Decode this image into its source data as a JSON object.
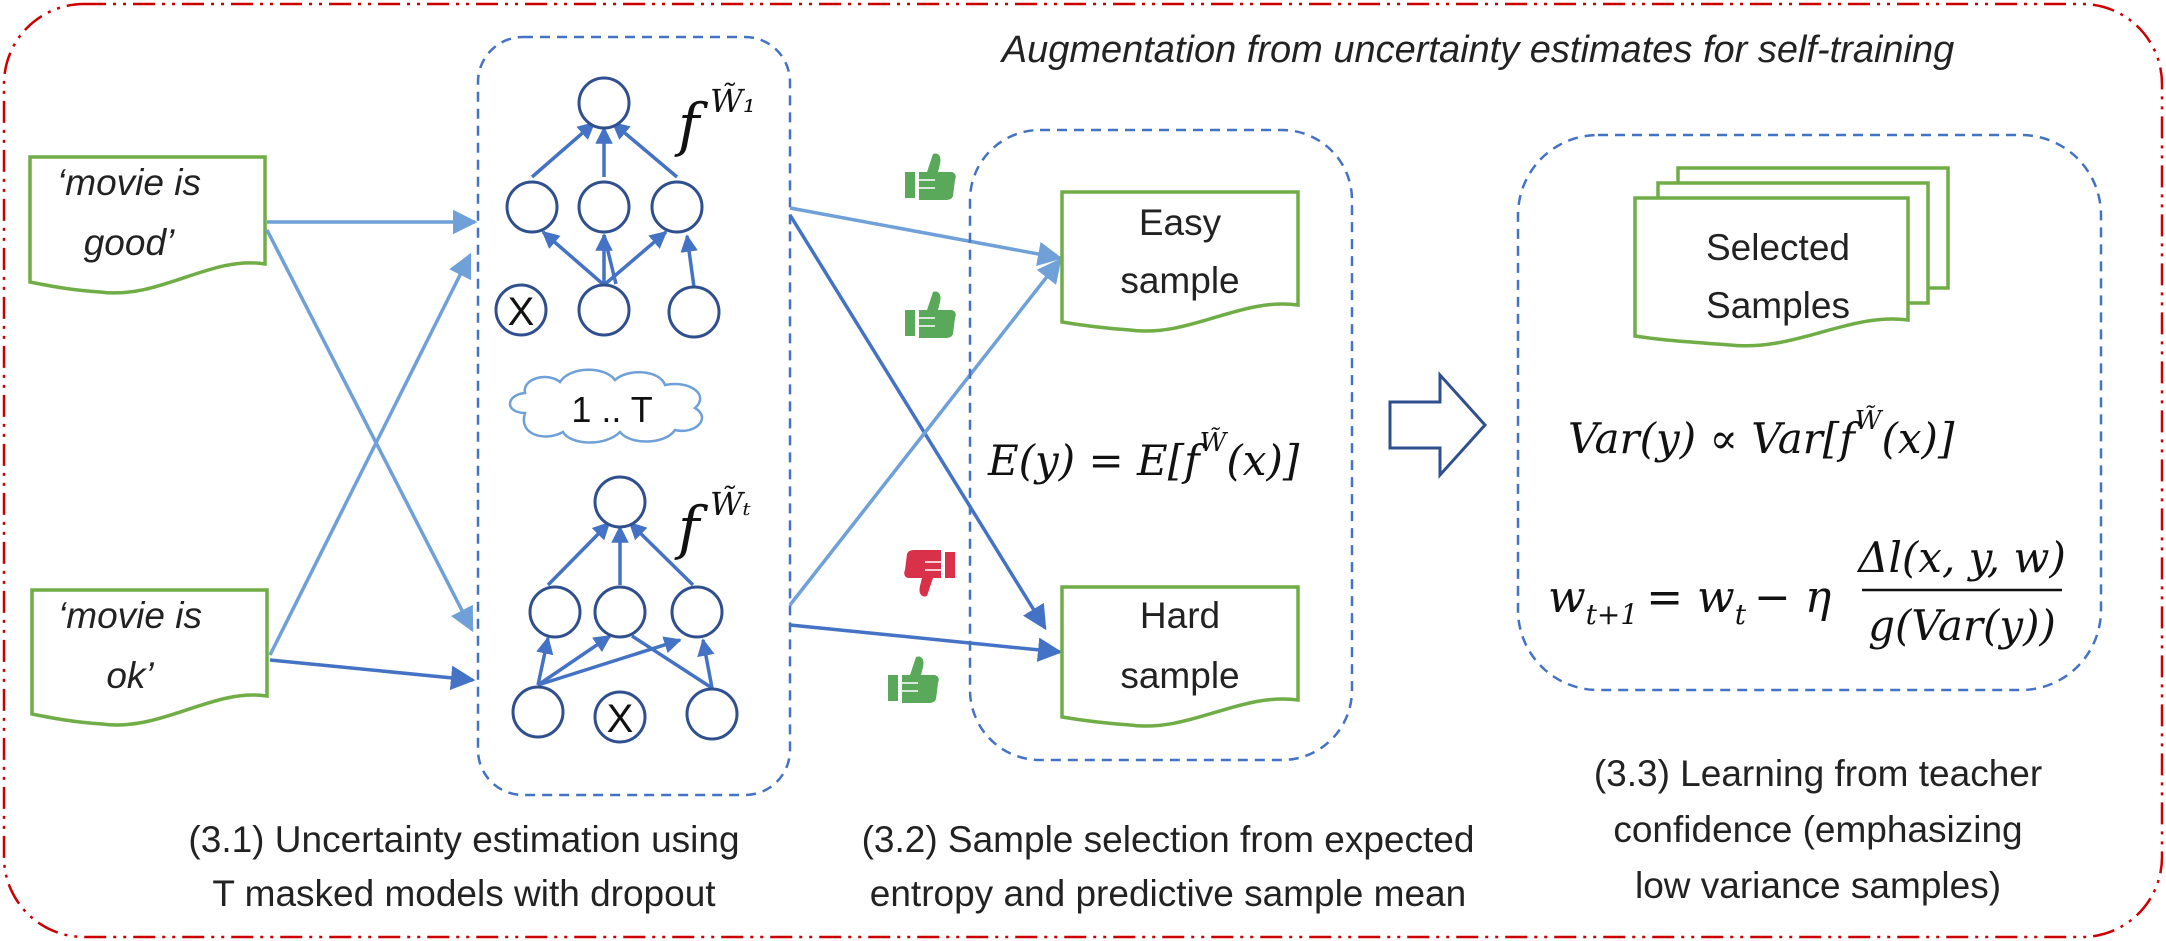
{
  "title": "Augmentation from uncertainty estimates for self-training",
  "inputs": [
    {
      "line1": "‘movie is",
      "line2": "good’"
    },
    {
      "line1": "‘movie is",
      "line2": "ok’"
    }
  ],
  "models": {
    "top_label_f": "f",
    "top_label_sup": "W̃₁",
    "bottom_label_f": "f",
    "bottom_label_sup": "W̃ₜ",
    "cloud_text": "1 .. T",
    "dropout_mark": "X"
  },
  "samples": {
    "easy_line1": "Easy",
    "easy_line2": "sample",
    "hard_line1": "Hard",
    "hard_line2": "sample",
    "expectation": "E(y) = E[f",
    "expectation_sup": "W̃",
    "expectation_tail": "(x)]"
  },
  "votes": [
    "thumbs-up",
    "thumbs-up",
    "thumbs-down",
    "thumbs-up"
  ],
  "colors": {
    "up": "#5aa85a",
    "down": "#d9314a",
    "frame": "#cc0000",
    "blue": "#4472c4",
    "green": "#70ad47"
  },
  "selected": {
    "line1": "Selected",
    "line2": "Samples",
    "var_formula": "Var(y) ∝ Var[f",
    "var_sup": "W̃",
    "var_tail": "(x)]",
    "update_lhs": "w",
    "update_lhs_sub": "t+1",
    "update_mid": "= w",
    "update_mid_sub": "t",
    "update_eta": "− η",
    "update_num": "Δl(x, y, w)",
    "update_den": "g(Var(y))"
  },
  "captions": {
    "c31_line1": "(3.1) Uncertainty estimation using",
    "c31_line2": "T masked models with dropout",
    "c32_line1": "(3.2) Sample selection from expected",
    "c32_line2": "entropy and predictive sample mean",
    "c33_line1": "(3.3) Learning from teacher",
    "c33_line2": "confidence (emphasizing",
    "c33_line3": "low variance samples)"
  }
}
